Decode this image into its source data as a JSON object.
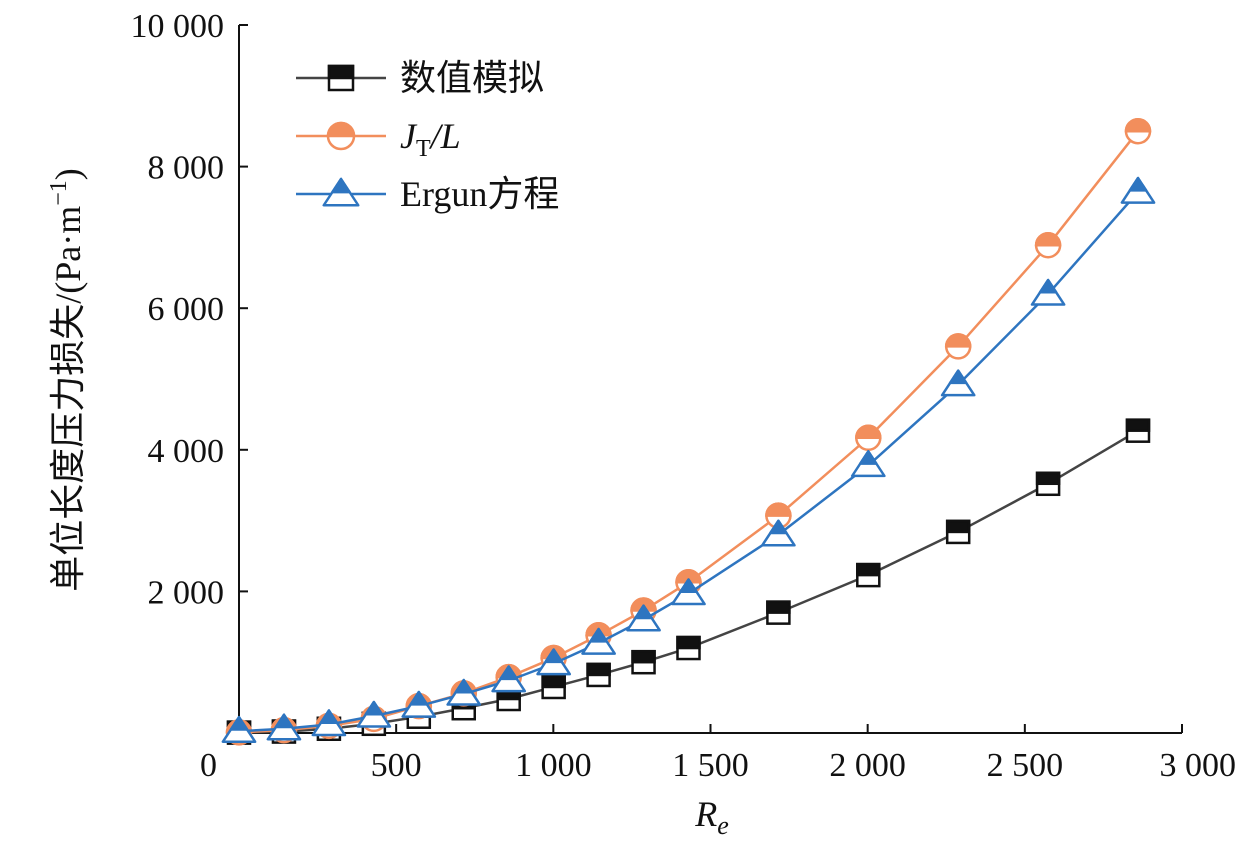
{
  "chart_data": {
    "type": "line",
    "xlabel": "R",
    "xlabel_sub": "e",
    "ylabel": "单位长度压力损失/(Pa·m",
    "ylabel_sup": "−1",
    "ylabel_close": ")",
    "xlim": [
      0,
      3000
    ],
    "ylim": [
      0,
      10000
    ],
    "x_ticks": [
      0,
      500,
      1000,
      1500,
      2000,
      2500,
      3000
    ],
    "x_tick_labels": [
      "0",
      "500",
      "1 000",
      "1 500",
      "2 000",
      "2 500",
      "3 000"
    ],
    "y_ticks": [
      2000,
      4000,
      6000,
      8000,
      10000
    ],
    "y_tick_labels": [
      "2 000",
      "4 000",
      "6 000",
      "8 000",
      "10 000"
    ],
    "grid": false,
    "legend_position": "top-left",
    "x": [
      0,
      143,
      286,
      429,
      572,
      715,
      858,
      1001,
      1144,
      1287,
      1430,
      1716,
      2002,
      2288,
      2574,
      2860
    ],
    "series": [
      {
        "name": "数值模拟",
        "marker": "square-half-filled",
        "color": "#444444",
        "values": [
          5,
          20,
          60,
          130,
          230,
          350,
          480,
          650,
          820,
          1000,
          1200,
          1700,
          2230,
          2840,
          3520,
          4270
        ]
      },
      {
        "name_main": "J",
        "name_sub": "T",
        "name_rest": "/L",
        "marker": "circle-half-filled",
        "color": "#f28e5c",
        "values": [
          8,
          40,
          100,
          200,
          380,
          560,
          790,
          1060,
          1380,
          1730,
          2130,
          3070,
          4170,
          5460,
          6890,
          8500
        ]
      },
      {
        "name": "Ergun方程",
        "marker": "triangle-half-filled",
        "color": "#2e75c0",
        "values": [
          25,
          60,
          120,
          240,
          380,
          550,
          740,
          980,
          1270,
          1600,
          1970,
          2800,
          3780,
          4920,
          6200,
          7640
        ]
      }
    ]
  }
}
